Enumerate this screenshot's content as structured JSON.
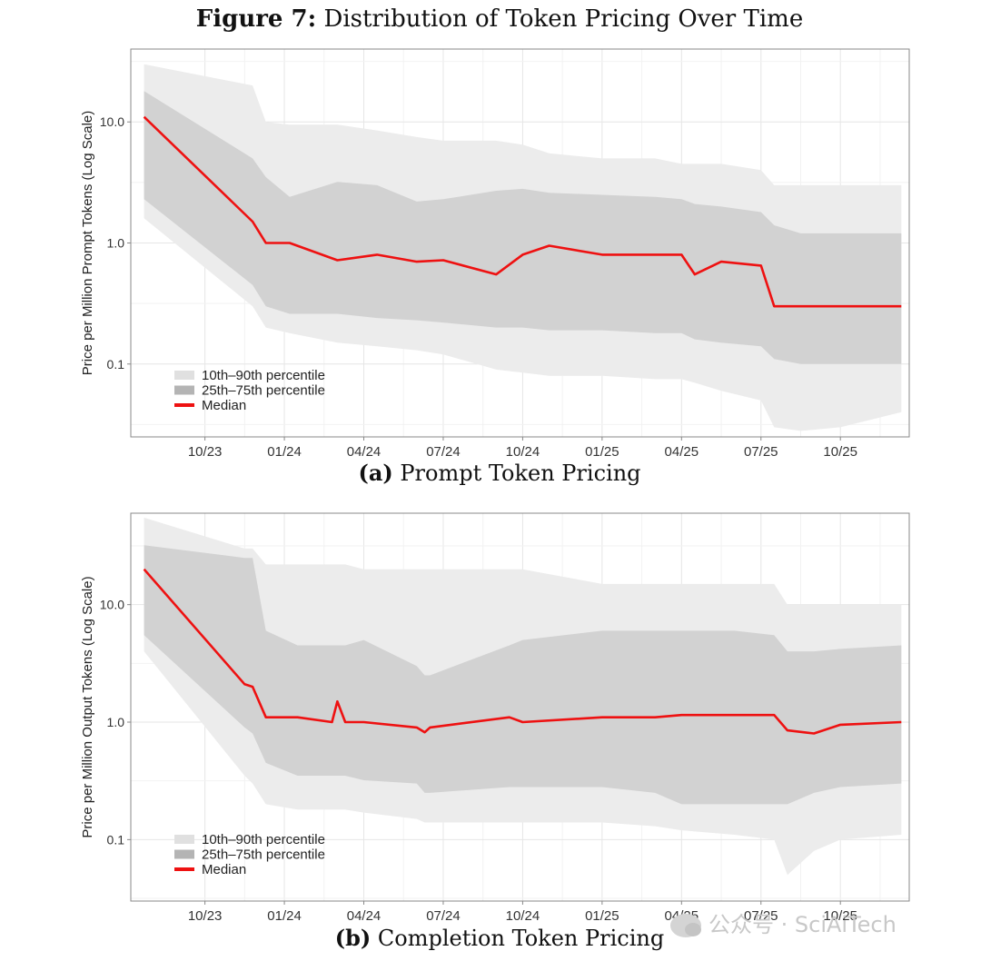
{
  "figure": {
    "label": "Figure 7:",
    "title": "Distribution of Token Pricing Over Time"
  },
  "colors": {
    "outer_band": "#ececec",
    "inner_band": "#d2d2d2",
    "median": "#ee1111",
    "grid": "#e6e6e6",
    "frame": "#888888",
    "text": "#333333"
  },
  "watermark": {
    "text": "公众号 · SciAiTech"
  },
  "chart_data": [
    {
      "type": "area",
      "caption_label": "(a)",
      "caption": "Prompt Token Pricing",
      "ylabel": "Price per Million Prompt Tokens (Log Scale)",
      "xlabel": "",
      "scale": "log10",
      "ylim": [
        0.025,
        40
      ],
      "yticks": [
        {
          "value": 0.1,
          "label": "0.1"
        },
        {
          "value": 1.0,
          "label": "1.0"
        },
        {
          "value": 10.0,
          "label": "10.0"
        }
      ],
      "xlim": [
        -2.8,
        26.6
      ],
      "xticks": [
        {
          "value": 0,
          "label": "10/23"
        },
        {
          "value": 3,
          "label": "01/24"
        },
        {
          "value": 6,
          "label": "04/24"
        },
        {
          "value": 9,
          "label": "07/24"
        },
        {
          "value": 12,
          "label": "10/24"
        },
        {
          "value": 15,
          "label": "01/25"
        },
        {
          "value": 18,
          "label": "04/25"
        },
        {
          "value": 21,
          "label": "07/25"
        },
        {
          "value": 24,
          "label": "10/25"
        }
      ],
      "legend": {
        "position": "bottom-left",
        "entries": [
          "10th–90th percentile",
          "25th–75th percentile",
          "Median"
        ]
      },
      "x": [
        -2.3,
        1.8,
        2.3,
        3.2,
        5.0,
        6.5,
        8.0,
        9.0,
        11.0,
        12.0,
        13.0,
        15.0,
        17.0,
        18.0,
        18.5,
        19.5,
        21.0,
        21.5,
        22.5,
        24.0,
        26.3
      ],
      "series": [
        {
          "name": "10th–90th percentile upper",
          "values": [
            30,
            20,
            10,
            9.5,
            9.5,
            8.5,
            7.5,
            7,
            7,
            6.5,
            5.5,
            5,
            5,
            4.5,
            4.5,
            4.5,
            4,
            3,
            3,
            3,
            3
          ]
        },
        {
          "name": "25th–75th percentile upper",
          "values": [
            18,
            5,
            3.5,
            2.4,
            3.2,
            3.0,
            2.2,
            2.3,
            2.7,
            2.8,
            2.6,
            2.5,
            2.4,
            2.3,
            2.1,
            2.0,
            1.8,
            1.4,
            1.2,
            1.2,
            1.2
          ]
        },
        {
          "name": "Median",
          "values": [
            11,
            1.5,
            1.0,
            1.0,
            0.72,
            0.8,
            0.7,
            0.72,
            0.55,
            0.8,
            0.95,
            0.8,
            0.8,
            0.8,
            0.55,
            0.7,
            0.65,
            0.3,
            0.3,
            0.3,
            0.3
          ]
        },
        {
          "name": "25th–75th percentile lower",
          "values": [
            2.3,
            0.45,
            0.3,
            0.26,
            0.26,
            0.24,
            0.23,
            0.22,
            0.2,
            0.2,
            0.19,
            0.19,
            0.18,
            0.18,
            0.16,
            0.15,
            0.14,
            0.11,
            0.1,
            0.1,
            0.1
          ]
        },
        {
          "name": "10th–90th percentile lower",
          "values": [
            1.6,
            0.3,
            0.2,
            0.18,
            0.15,
            0.14,
            0.13,
            0.12,
            0.09,
            0.085,
            0.08,
            0.08,
            0.075,
            0.075,
            0.07,
            0.06,
            0.05,
            0.03,
            0.028,
            0.03,
            0.04
          ]
        }
      ]
    },
    {
      "type": "area",
      "caption_label": "(b)",
      "caption": "Completion Token Pricing",
      "ylabel": "Price per Million Output Tokens (Log Scale)",
      "xlabel": "",
      "scale": "log10",
      "ylim": [
        0.03,
        60
      ],
      "yticks": [
        {
          "value": 0.1,
          "label": "0.1"
        },
        {
          "value": 1.0,
          "label": "1.0"
        },
        {
          "value": 10.0,
          "label": "10.0"
        }
      ],
      "xlim": [
        -2.8,
        26.6
      ],
      "xticks": [
        {
          "value": 0,
          "label": "10/23"
        },
        {
          "value": 3,
          "label": "01/24"
        },
        {
          "value": 6,
          "label": "04/24"
        },
        {
          "value": 9,
          "label": "07/24"
        },
        {
          "value": 12,
          "label": "10/24"
        },
        {
          "value": 15,
          "label": "01/25"
        },
        {
          "value": 18,
          "label": "04/25"
        },
        {
          "value": 21,
          "label": "07/25"
        },
        {
          "value": 24,
          "label": "10/25"
        }
      ],
      "legend": {
        "position": "bottom-left",
        "entries": [
          "10th–90th percentile",
          "25th–75th percentile",
          "Median"
        ]
      },
      "x": [
        -2.3,
        1.5,
        1.8,
        2.3,
        3.5,
        4.8,
        5.0,
        5.3,
        6.0,
        8.0,
        8.3,
        8.5,
        11.5,
        12.0,
        15.0,
        17.0,
        18.0,
        20.0,
        21.5,
        22.0,
        23.0,
        24.0,
        26.3
      ],
      "series": [
        {
          "name": "10th–90th percentile upper",
          "values": [
            55,
            30,
            30,
            22,
            22,
            22,
            22,
            22,
            20,
            20,
            20,
            20,
            20,
            20,
            15,
            15,
            15,
            15,
            15,
            10,
            10,
            10,
            10
          ]
        },
        {
          "name": "25th–75th percentile upper",
          "values": [
            32,
            25,
            25,
            6,
            4.5,
            4.5,
            4.5,
            4.5,
            5,
            3,
            2.5,
            2.5,
            4.5,
            5,
            6,
            6,
            6,
            6,
            5.5,
            4,
            4,
            4.2,
            4.5
          ]
        },
        {
          "name": "Median",
          "values": [
            20,
            2.1,
            2.0,
            1.1,
            1.1,
            1.0,
            1.5,
            1.0,
            1.0,
            0.9,
            0.82,
            0.9,
            1.1,
            1.0,
            1.1,
            1.1,
            1.15,
            1.15,
            1.15,
            0.85,
            0.8,
            0.95,
            1.0
          ]
        },
        {
          "name": "25th–75th percentile lower",
          "values": [
            5.5,
            0.9,
            0.8,
            0.45,
            0.35,
            0.35,
            0.35,
            0.35,
            0.32,
            0.3,
            0.25,
            0.25,
            0.28,
            0.28,
            0.28,
            0.25,
            0.2,
            0.2,
            0.2,
            0.2,
            0.25,
            0.28,
            0.3
          ]
        },
        {
          "name": "10th–90th percentile lower",
          "values": [
            4,
            0.35,
            0.3,
            0.2,
            0.18,
            0.18,
            0.18,
            0.18,
            0.17,
            0.15,
            0.14,
            0.14,
            0.14,
            0.14,
            0.14,
            0.13,
            0.12,
            0.11,
            0.1,
            0.05,
            0.08,
            0.1,
            0.11
          ]
        }
      ]
    }
  ]
}
